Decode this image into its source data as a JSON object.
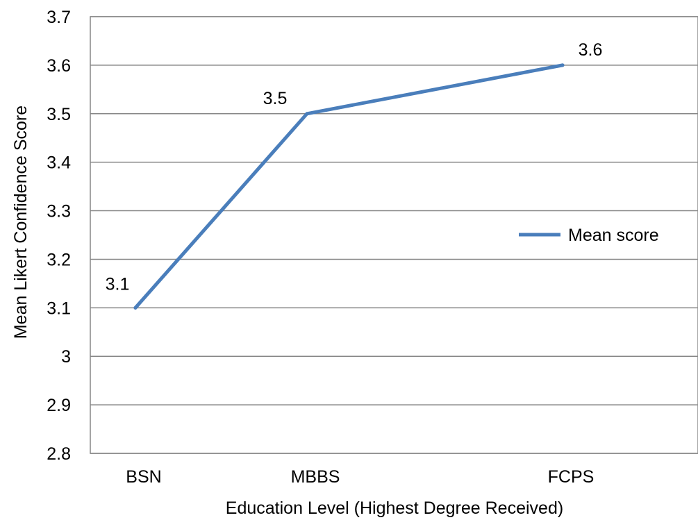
{
  "chart_data": {
    "type": "line",
    "title": "",
    "xlabel": "Education Level (Highest Degree Received)",
    "ylabel": "Mean Likert Confidence Score",
    "categories": [
      "BSN",
      "MBBS",
      "FCPS"
    ],
    "series": [
      {
        "name": "Mean score",
        "values": [
          3.1,
          3.5,
          3.6
        ],
        "data_labels": [
          "3.1",
          "3.5",
          "3.6"
        ],
        "color": "#4a7ebb"
      }
    ],
    "ylim": [
      2.8,
      3.7
    ],
    "yticks": [
      "2.8",
      "2.9",
      "3",
      "3.1",
      "3.2",
      "3.3",
      "3.4",
      "3.5",
      "3.6",
      "3.7"
    ],
    "grid": true,
    "legend_position": "right",
    "colors": {
      "gridline": "#868686",
      "plot_border": "#868686"
    }
  }
}
